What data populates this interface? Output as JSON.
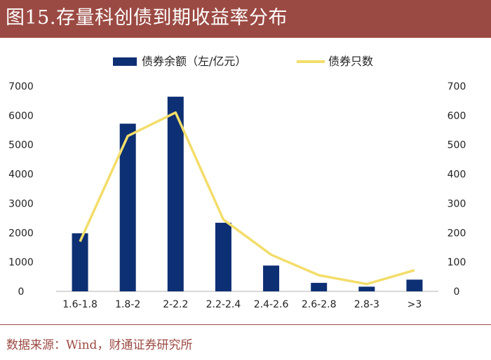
{
  "header": {
    "title": "图15.存量科创债到期收益率分布"
  },
  "footer": {
    "source": "数据来源：Wind，财通证券研究所"
  },
  "colors": {
    "bar": "#0d2f73",
    "line": "#f3dd6a",
    "header": "#9b4a43"
  },
  "chart_data": {
    "type": "bar",
    "categories": [
      "1.6-1.8",
      "1.8-2",
      "2-2.2",
      "2.2-2.4",
      "2.4-2.6",
      "2.6-2.8",
      "2.8-3",
      ">3"
    ],
    "series": [
      {
        "name": "债券余额（左/亿元）",
        "type": "bar",
        "axis": "left",
        "values": [
          1980,
          5720,
          6640,
          2340,
          880,
          290,
          160,
          400
        ]
      },
      {
        "name": "债券只数",
        "type": "line",
        "axis": "right",
        "values": [
          170,
          530,
          610,
          245,
          125,
          55,
          25,
          72
        ]
      }
    ],
    "y_left": {
      "ylim": [
        0,
        7000
      ],
      "ticks": [
        "0",
        "1000",
        "2000",
        "3000",
        "4000",
        "5000",
        "6000",
        "7000"
      ]
    },
    "y_right": {
      "ylim": [
        0,
        700
      ],
      "ticks": [
        "0",
        "100",
        "200",
        "300",
        "400",
        "500",
        "600",
        "700"
      ]
    },
    "legend_position": "top",
    "grid": false
  }
}
